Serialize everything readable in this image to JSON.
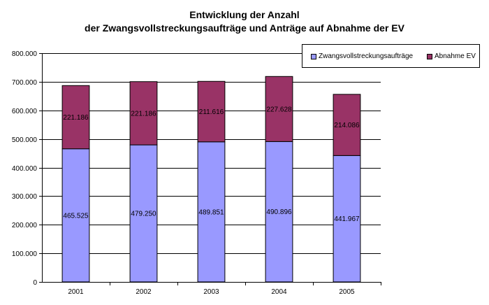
{
  "title_lines": [
    "Entwicklung der Anzahl",
    "der Zwangsvollstreckungsaufträge und Anträge auf Abnahme der EV"
  ],
  "colors": {
    "zwang": "#9999ff",
    "abnahme": "#993366",
    "grid": "#000000"
  },
  "chart_data": {
    "type": "bar",
    "stacked": true,
    "categories": [
      "2001",
      "2002",
      "2003",
      "2004",
      "2005"
    ],
    "series": [
      {
        "name": "Zwangsvollstreckungsaufträge",
        "values": [
          465525,
          479250,
          489851,
          490896,
          441967
        ],
        "labels": [
          "465.525",
          "479.250",
          "489.851",
          "490.896",
          "441.967"
        ]
      },
      {
        "name": "Abnahme EV",
        "values": [
          221186,
          221186,
          211616,
          227628,
          214086
        ],
        "labels": [
          "221.186",
          "221.186",
          "211.616",
          "227.628",
          "214.086"
        ]
      }
    ],
    "ylim": [
      0,
      800000
    ],
    "yticks": [
      0,
      100000,
      200000,
      300000,
      400000,
      500000,
      600000,
      700000,
      800000
    ],
    "ytick_labels": [
      "0",
      "100.000",
      "200.000",
      "300.000",
      "400.000",
      "500.000",
      "600.000",
      "700.000",
      "800.000"
    ],
    "grid": true,
    "legend": "top-right"
  }
}
